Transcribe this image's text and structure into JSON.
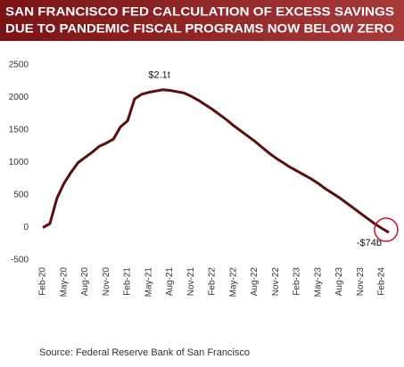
{
  "chart_data": {
    "type": "line",
    "title": [
      "SAN FRANCISCO FED CALCULATION OF EXCESS SAVINGS",
      "DUE TO PANDEMIC FISCAL PROGRAMS NOW BELOW ZERO"
    ],
    "source": "Source:  Federal Reserve Bank of San Francisco",
    "categories": [
      "Feb-20",
      null,
      null,
      "May-20",
      null,
      null,
      "Aug-20",
      null,
      null,
      "Nov-20",
      null,
      null,
      "Feb-21",
      null,
      null,
      "May-21",
      null,
      null,
      "Aug-21",
      null,
      null,
      "Nov-21",
      null,
      null,
      "Feb-22",
      null,
      null,
      "May-22",
      null,
      null,
      "Aug-22",
      null,
      null,
      "Nov-22",
      null,
      null,
      "Feb-23",
      null,
      null,
      "May-23",
      null,
      null,
      "Aug-23",
      null,
      null,
      "Nov-23",
      null,
      null,
      "Feb-24",
      null
    ],
    "series": [
      {
        "name": "Excess savings",
        "color": "#5c0d0d",
        "values": [
          0,
          60,
          450,
          680,
          850,
          1000,
          1080,
          1160,
          1250,
          1300,
          1360,
          1550,
          1640,
          1980,
          2050,
          2080,
          2100,
          2120,
          2110,
          2090,
          2070,
          2020,
          1960,
          1890,
          1820,
          1740,
          1660,
          1570,
          1490,
          1410,
          1330,
          1240,
          1150,
          1070,
          1000,
          930,
          870,
          810,
          750,
          680,
          600,
          530,
          460,
          380,
          300,
          220,
          140,
          60,
          -10,
          -74
        ],
        "value_labels": [
          null,
          null,
          null,
          null,
          null,
          null,
          null,
          null,
          null,
          null,
          null,
          null,
          null,
          null,
          null,
          null,
          null,
          "$2.1t",
          null,
          null,
          null,
          null,
          null,
          null,
          null,
          null,
          null,
          null,
          null,
          null,
          null,
          null,
          null,
          null,
          null,
          null,
          null,
          null,
          null,
          null,
          null,
          null,
          null,
          null,
          null,
          null,
          null,
          null,
          null,
          "-$74b"
        ]
      }
    ],
    "ylim": [
      -500,
      2500
    ],
    "yticks": [
      -500,
      0,
      500,
      1000,
      1500,
      2000,
      2500
    ],
    "grid": false
  }
}
